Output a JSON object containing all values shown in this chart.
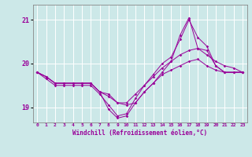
{
  "xlabel": "Windchill (Refroidissement éolien,°C)",
  "background_color": "#cce8e8",
  "line_color": "#990099",
  "grid_color": "#ffffff",
  "xlim": [
    -0.5,
    23.5
  ],
  "ylim": [
    18.65,
    21.35
  ],
  "yticks": [
    19,
    20,
    21
  ],
  "xticks": [
    0,
    1,
    2,
    3,
    4,
    5,
    6,
    7,
    8,
    9,
    10,
    11,
    12,
    13,
    14,
    15,
    16,
    17,
    18,
    19,
    20,
    21,
    22,
    23
  ],
  "series": [
    [
      19.8,
      19.7,
      19.55,
      19.55,
      19.55,
      19.55,
      19.55,
      19.35,
      18.95,
      18.75,
      18.8,
      19.1,
      19.35,
      19.55,
      19.75,
      19.85,
      19.95,
      20.05,
      20.1,
      19.95,
      19.85,
      19.8,
      19.8,
      19.8
    ],
    [
      19.8,
      19.7,
      19.55,
      19.55,
      19.55,
      19.55,
      19.55,
      19.35,
      19.25,
      19.1,
      19.1,
      19.3,
      19.5,
      19.7,
      19.9,
      20.05,
      20.2,
      20.3,
      20.35,
      20.2,
      20.05,
      19.95,
      19.9,
      19.8
    ],
    [
      19.8,
      19.65,
      19.5,
      19.5,
      19.5,
      19.5,
      19.5,
      19.3,
      19.05,
      18.8,
      18.85,
      19.2,
      19.5,
      19.75,
      20.0,
      20.15,
      20.55,
      21.0,
      20.6,
      20.4,
      19.95,
      19.8,
      19.8,
      19.8
    ],
    [
      19.8,
      19.7,
      19.55,
      19.55,
      19.55,
      19.55,
      19.55,
      19.35,
      19.3,
      19.1,
      19.05,
      19.1,
      19.35,
      19.55,
      19.8,
      20.05,
      20.65,
      21.05,
      20.35,
      20.3,
      19.95,
      19.8,
      19.8,
      19.8
    ]
  ]
}
